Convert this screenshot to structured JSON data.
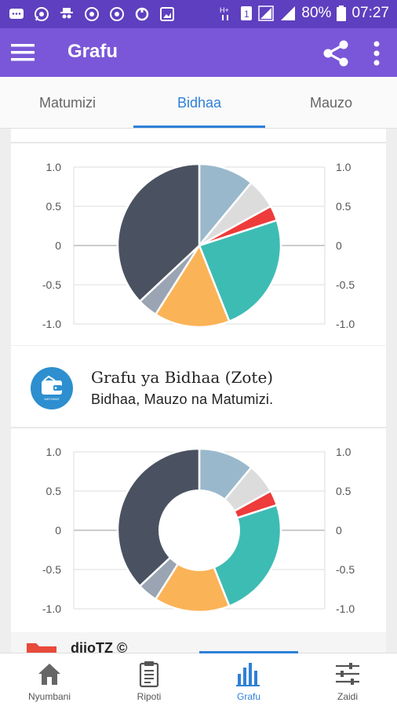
{
  "status_bar": {
    "battery": "80%",
    "time": "07:27"
  },
  "app_bar": {
    "title": "Grafu"
  },
  "tabs": [
    {
      "label": "Matumizi",
      "active": false
    },
    {
      "label": "Bidhaa",
      "active": true
    },
    {
      "label": "Mauzo",
      "active": false
    }
  ],
  "chart_info": {
    "title": "Grafu ya Bidhaa (Zote)",
    "subtitle": "Bidhaa, Mauzo na Matumizi.",
    "icon_label": "MATUMIZI"
  },
  "partial_card": {
    "text": "dijoTZ ©"
  },
  "bottom_nav": [
    {
      "label": "Nyumbani",
      "icon": "home-icon",
      "active": false
    },
    {
      "label": "Ripoti",
      "icon": "clipboard-icon",
      "active": false
    },
    {
      "label": "Grafu",
      "icon": "bar-chart-icon",
      "active": true
    },
    {
      "label": "Zaidi",
      "icon": "sliders-icon",
      "active": false
    }
  ],
  "colors": {
    "status_bar": "#5e3fbf",
    "app_bar": "#7a57d8",
    "accent": "#2f80d8"
  },
  "chart_data": [
    {
      "type": "pie",
      "y_ticks": [
        "1.0",
        "0.5",
        "0",
        "-0.5",
        "-1.0"
      ],
      "ylim": [
        -1.0,
        1.0
      ],
      "grid": true,
      "slices": [
        {
          "value": 11,
          "color": "#9ab8cc"
        },
        {
          "value": 6,
          "color": "#dcdcdc"
        },
        {
          "value": 3,
          "color": "#ee3b3b"
        },
        {
          "value": 24,
          "color": "#3dbcb4"
        },
        {
          "value": 15,
          "color": "#fbb357"
        },
        {
          "value": 4,
          "color": "#9aa4b2"
        },
        {
          "value": 37,
          "color": "#4a5261"
        }
      ]
    },
    {
      "type": "pie",
      "donut": true,
      "y_ticks": [
        "1.0",
        "0.5",
        "0",
        "-0.5",
        "-1.0"
      ],
      "ylim": [
        -1.0,
        1.0
      ],
      "grid": true,
      "slices": [
        {
          "value": 11,
          "color": "#9ab8cc"
        },
        {
          "value": 6,
          "color": "#dcdcdc"
        },
        {
          "value": 3,
          "color": "#ee3b3b"
        },
        {
          "value": 24,
          "color": "#3dbcb4"
        },
        {
          "value": 15,
          "color": "#fbb357"
        },
        {
          "value": 4,
          "color": "#9aa4b2"
        },
        {
          "value": 37,
          "color": "#4a5261"
        }
      ]
    }
  ]
}
